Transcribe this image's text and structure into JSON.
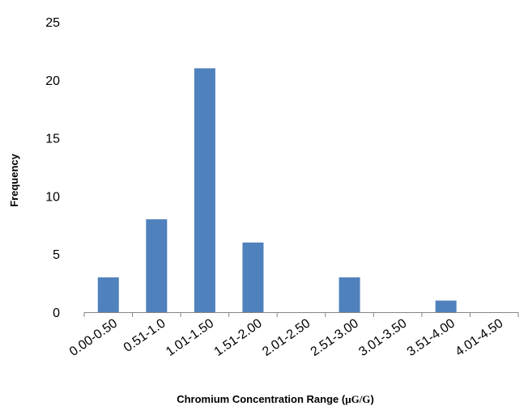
{
  "chart_data": {
    "type": "bar",
    "title": "",
    "categories": [
      "0.00-0.50",
      "0.51-1.0",
      "1.01-1.50",
      "1.51-2.00",
      "2.01-2.50",
      "2.51-3.00",
      "3.01-3.50",
      "3.51-4.00",
      "4.01-4.50"
    ],
    "values": [
      3,
      8,
      21,
      6,
      0,
      3,
      0,
      1,
      0
    ],
    "bar_color": "#4f81bd",
    "ylim": [
      0,
      25
    ],
    "yticks": [
      "0",
      "5",
      "10",
      "15",
      "20",
      "25"
    ],
    "ylabel": "Frequency",
    "xlabel": {
      "main": "Chromium Concentration Range (",
      "unit": "μG/G",
      "close": ")"
    },
    "grid": false,
    "legend": "none"
  }
}
